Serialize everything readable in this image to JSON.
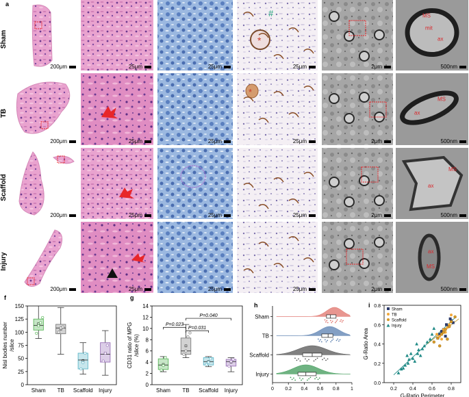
{
  "panel_letters": [
    "a",
    "b",
    "c",
    "d",
    "e",
    "f",
    "g",
    "h",
    "i"
  ],
  "row_labels": [
    "Sham",
    "TB",
    "Scaffold",
    "Injury"
  ],
  "scale_bars": {
    "a": [
      "200μm",
      "200μm",
      "200μm",
      "200μm"
    ],
    "b": [
      "25μm",
      "25μm",
      "25μm",
      "25μm"
    ],
    "c": [
      "25μm",
      "25μm",
      "25μm",
      "25μm"
    ],
    "d": [
      "25μm",
      "25μm",
      "25μm",
      "25μm"
    ],
    "e1": [
      "2μm",
      "2μm",
      "2μm",
      "2μm"
    ],
    "e2": [
      "500nm",
      "500nm",
      "500nm",
      "500nm"
    ]
  },
  "tem_annotations": {
    "sham": [
      "MS",
      "mit",
      "ax"
    ],
    "tb": [
      "ax",
      "MS"
    ],
    "scaffold": [
      "ax",
      "MS"
    ],
    "injury": [
      "ax",
      "MS"
    ]
  },
  "d_markers": {
    "hash": "#",
    "star": "*"
  },
  "colors": {
    "sham": "#e0736b",
    "tb": "#5a7fb0",
    "scaffold": "#565656",
    "injury": "#3f9a58",
    "he_pink": "#e49ac4",
    "nissl_blue": "#5f86c2",
    "ihc_bg": "#f3eef2",
    "tem_gray": "#8d8d8d",
    "red_arrow": "#e8262a"
  },
  "chart_data": [
    {
      "type": "box",
      "panel": "f",
      "ylabel": "Nisl bodies number\n/slice",
      "categories": [
        "Sham",
        "TB",
        "Scaffold",
        "Injury"
      ],
      "ylim": [
        0,
        150
      ],
      "yticks": [
        0,
        25,
        50,
        75,
        100,
        125,
        150
      ],
      "colors": [
        "#5cb85c",
        "#7d7d7d",
        "#5fb7c9",
        "#9b73b9"
      ],
      "boxes": [
        {
          "min": 88,
          "q1": 104,
          "median": 113,
          "q3": 125,
          "max": 150,
          "mean": 116,
          "points": [
            98,
            112,
            118,
            128
          ]
        },
        {
          "min": 58,
          "q1": 97,
          "median": 108,
          "q3": 115,
          "max": 147,
          "mean": 106,
          "points": [
            100,
            108,
            110
          ]
        },
        {
          "min": 20,
          "q1": 30,
          "median": 47,
          "q3": 60,
          "max": 80,
          "mean": 46,
          "points": [
            30,
            42,
            60
          ]
        },
        {
          "min": 18,
          "q1": 43,
          "median": 58,
          "q3": 80,
          "max": 103,
          "mean": 60,
          "points": [
            45,
            60,
            75
          ]
        }
      ]
    },
    {
      "type": "box",
      "panel": "g",
      "ylabel": "CD31 ratio of MPG\n/slice (%)",
      "categories": [
        "Sham",
        "TB",
        "Scaffold",
        "Injury"
      ],
      "ylim": [
        0,
        14
      ],
      "yticks": [
        0,
        2,
        4,
        6,
        8,
        10,
        12,
        14
      ],
      "colors": [
        "#5cb85c",
        "#7d7d7d",
        "#5fb7c9",
        "#9b73b9"
      ],
      "boxes": [
        {
          "min": 2.3,
          "q1": 2.7,
          "median": 3.5,
          "q3": 4.6,
          "max": 5.0,
          "mean": 3.6,
          "points": [
            2.6,
            3.4,
            4.8
          ]
        },
        {
          "min": 4.8,
          "q1": 5.4,
          "median": 6.0,
          "q3": 8.3,
          "max": 10.7,
          "mean": 6.9,
          "points": [
            5.4,
            6.0,
            8.5,
            9.2
          ]
        },
        {
          "min": 3.2,
          "q1": 3.5,
          "median": 4.1,
          "q3": 4.8,
          "max": 5.0,
          "mean": 4.1,
          "points": [
            3.6,
            4.0,
            4.6
          ]
        },
        {
          "min": 2.3,
          "q1": 3.3,
          "median": 4.1,
          "q3": 4.5,
          "max": 4.8,
          "mean": 4.0,
          "points": [
            3.3,
            4.1,
            4.5
          ]
        }
      ],
      "significance": [
        {
          "from": 0,
          "to": 1,
          "label": "P=0.023",
          "y": 10.2
        },
        {
          "from": 1,
          "to": 2,
          "label": "P=0.031",
          "y": 9.6
        },
        {
          "from": 1,
          "to": 3,
          "label": "P=0.040",
          "y": 11.8
        }
      ]
    },
    {
      "type": "raincloud",
      "panel": "h",
      "xlabel": "G-Ratio",
      "categories": [
        "Sham",
        "TB",
        "Scaffold",
        "Injury"
      ],
      "xlim": [
        0,
        1
      ],
      "xticks": [
        "0",
        "0.2",
        "0.4",
        "0.6",
        "0.8",
        "1"
      ],
      "colors": [
        "#e0736b",
        "#5a7fb0",
        "#565656",
        "#3f9a58"
      ],
      "clouds": [
        {
          "peak": 0.78,
          "spread": 0.1,
          "q1": 0.68,
          "median": 0.73,
          "q3": 0.8
        },
        {
          "peak": 0.72,
          "spread": 0.12,
          "q1": 0.62,
          "median": 0.7,
          "q3": 0.76
        },
        {
          "peak": 0.5,
          "spread": 0.18,
          "q1": 0.38,
          "median": 0.5,
          "q3": 0.62
        },
        {
          "peak": 0.42,
          "spread": 0.16,
          "q1": 0.32,
          "median": 0.42,
          "q3": 0.55
        }
      ]
    },
    {
      "type": "scatter",
      "panel": "i",
      "xlabel": "G-Ratio Perimeter",
      "ylabel": "G-Ratio Area",
      "xlim": [
        0.1,
        0.9
      ],
      "ylim": [
        0,
        0.8
      ],
      "xticks": [
        "0.2",
        "0.4",
        "0.6",
        "0.8"
      ],
      "yticks": [
        "0.0",
        "0.2",
        "0.4",
        "0.6",
        "0.8"
      ],
      "legend": [
        "Sham",
        "TB",
        "Scaffold",
        "Injury"
      ],
      "legend_position": "top-left",
      "colors": [
        "#2b3a6b",
        "#f2a93b",
        "#d79a2a",
        "#1f8a86"
      ],
      "series": [
        {
          "name": "Sham",
          "points": [
            [
              0.72,
              0.55
            ],
            [
              0.75,
              0.6
            ],
            [
              0.8,
              0.64
            ],
            [
              0.68,
              0.5
            ],
            [
              0.77,
              0.58
            ],
            [
              0.82,
              0.62
            ],
            [
              0.7,
              0.53
            ],
            [
              0.74,
              0.48
            ],
            [
              0.79,
              0.66
            ],
            [
              0.66,
              0.46
            ]
          ]
        },
        {
          "name": "TB",
          "points": [
            [
              0.68,
              0.48
            ],
            [
              0.72,
              0.55
            ],
            [
              0.78,
              0.6
            ],
            [
              0.65,
              0.5
            ],
            [
              0.8,
              0.7
            ],
            [
              0.74,
              0.52
            ],
            [
              0.7,
              0.45
            ],
            [
              0.76,
              0.57
            ]
          ]
        },
        {
          "name": "Scaffold",
          "points": [
            [
              0.62,
              0.42
            ],
            [
              0.7,
              0.5
            ],
            [
              0.74,
              0.55
            ],
            [
              0.8,
              0.63
            ],
            [
              0.66,
              0.46
            ],
            [
              0.72,
              0.52
            ],
            [
              0.78,
              0.58
            ],
            [
              0.84,
              0.68
            ],
            [
              0.76,
              0.45
            ],
            [
              0.68,
              0.38
            ]
          ]
        },
        {
          "name": "Injury",
          "points": [
            [
              0.25,
              0.1
            ],
            [
              0.3,
              0.15
            ],
            [
              0.35,
              0.2
            ],
            [
              0.4,
              0.25
            ],
            [
              0.45,
              0.3
            ],
            [
              0.5,
              0.35
            ],
            [
              0.38,
              0.3
            ],
            [
              0.48,
              0.28
            ],
            [
              0.55,
              0.42
            ],
            [
              0.42,
              0.22
            ],
            [
              0.32,
              0.18
            ],
            [
              0.58,
              0.45
            ],
            [
              0.6,
              0.5
            ],
            [
              0.28,
              0.14
            ],
            [
              0.52,
              0.38
            ],
            [
              0.46,
              0.34
            ],
            [
              0.36,
              0.24
            ],
            [
              0.62,
              0.56
            ],
            [
              0.44,
              0.4
            ],
            [
              0.34,
              0.28
            ]
          ]
        }
      ],
      "fit_lines": [
        [
          [
            0.2,
            0.08
          ],
          [
            0.85,
            0.68
          ]
        ],
        [
          [
            0.55,
            0.4
          ],
          [
            0.88,
            0.66
          ]
        ]
      ]
    }
  ]
}
